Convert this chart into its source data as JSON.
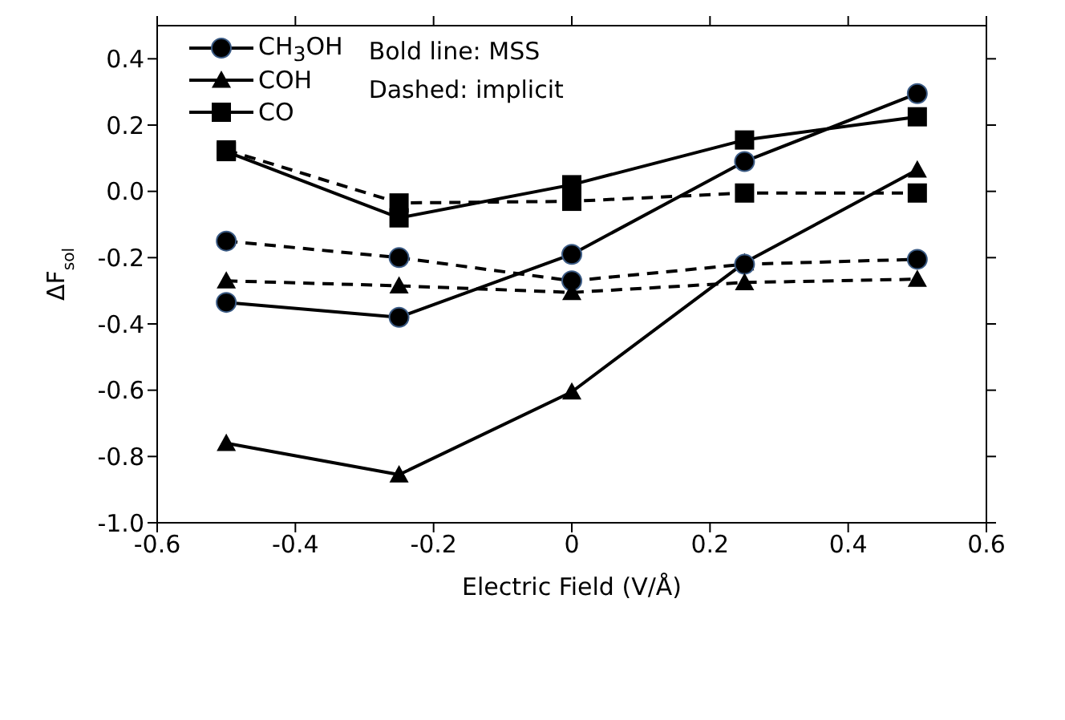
{
  "chart_data": {
    "type": "line",
    "xlabel": "Electric Field (V/Å)",
    "ylabel": "ΔF$_{sol}$",
    "x": [
      -0.5,
      -0.25,
      0,
      0.25,
      0.5
    ],
    "series": [
      {
        "name": "CH$_{3}$OH",
        "color": "#000000",
        "marker": "circle",
        "line_style": "solid",
        "values": [
          -0.335,
          -0.38,
          -0.19,
          0.09,
          0.295
        ]
      },
      {
        "name": "COH",
        "color": "#000000",
        "marker": "triangle",
        "line_style": "solid",
        "values": [
          -0.76,
          -0.855,
          -0.605,
          -0.215,
          0.065
        ]
      },
      {
        "name": "CO",
        "color": "#000000",
        "marker": "square",
        "line_style": "solid",
        "values": [
          0.12,
          -0.08,
          0.02,
          0.155,
          0.225
        ]
      },
      {
        "color": "#000000",
        "marker": "circle",
        "line_style": "dashed",
        "values": [
          -0.15,
          -0.2,
          -0.27,
          -0.22,
          -0.205
        ]
      },
      {
        "color": "#000000",
        "marker": "triangle",
        "line_style": "dashed",
        "values": [
          -0.27,
          -0.285,
          -0.305,
          -0.275,
          -0.265
        ]
      },
      {
        "color": "#000000",
        "marker": "square",
        "line_style": "dashed",
        "values": [
          0.125,
          -0.035,
          -0.03,
          -0.005,
          -0.005
        ]
      }
    ],
    "xlim": [
      -0.6,
      0.6
    ],
    "xticks": [
      -0.6,
      -0.4,
      -0.2,
      {
        "value": 0,
        "label": "0"
      },
      0.2,
      0.4,
      0.6
    ],
    "ylim": [
      -1.0,
      0.5
    ],
    "yticks": [
      {
        "value": -1.0,
        "label": "-1.0"
      },
      -0.8,
      -0.6,
      -0.4,
      -0.2,
      {
        "value": 0,
        "label": "0.0"
      },
      0.2,
      0.4
    ],
    "annotations": [
      "Bold line: MSS",
      "Dashed: implicit"
    ],
    "legend": "top left"
  }
}
